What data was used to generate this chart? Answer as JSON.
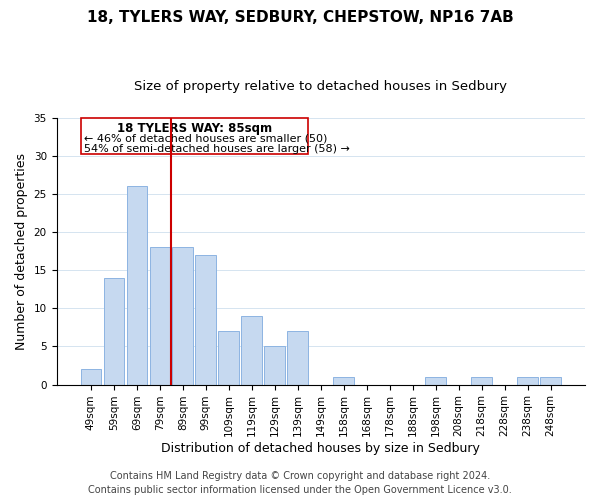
{
  "title1": "18, TYLERS WAY, SEDBURY, CHEPSTOW, NP16 7AB",
  "title2": "Size of property relative to detached houses in Sedbury",
  "xlabel": "Distribution of detached houses by size in Sedbury",
  "ylabel": "Number of detached properties",
  "bar_labels": [
    "49sqm",
    "59sqm",
    "69sqm",
    "79sqm",
    "89sqm",
    "99sqm",
    "109sqm",
    "119sqm",
    "129sqm",
    "139sqm",
    "149sqm",
    "158sqm",
    "168sqm",
    "178sqm",
    "188sqm",
    "198sqm",
    "208sqm",
    "218sqm",
    "228sqm",
    "238sqm",
    "248sqm"
  ],
  "bar_values": [
    2,
    14,
    26,
    18,
    18,
    17,
    7,
    9,
    5,
    7,
    0,
    1,
    0,
    0,
    0,
    1,
    0,
    1,
    0,
    1,
    1
  ],
  "bar_color": "#c6d9f0",
  "bar_edge_color": "#8db4e2",
  "vline_color": "#cc0000",
  "annotation_line1": "18 TYLERS WAY: 85sqm",
  "annotation_line2": "← 46% of detached houses are smaller (50)",
  "annotation_line3": "54% of semi-detached houses are larger (58) →",
  "annotation_box_edge": "#cc0000",
  "ylim": [
    0,
    35
  ],
  "yticks": [
    0,
    5,
    10,
    15,
    20,
    25,
    30,
    35
  ],
  "footer1": "Contains HM Land Registry data © Crown copyright and database right 2024.",
  "footer2": "Contains public sector information licensed under the Open Government Licence v3.0.",
  "title1_fontsize": 11,
  "title2_fontsize": 9.5,
  "xlabel_fontsize": 9,
  "ylabel_fontsize": 9,
  "tick_fontsize": 7.5,
  "footer_fontsize": 7
}
